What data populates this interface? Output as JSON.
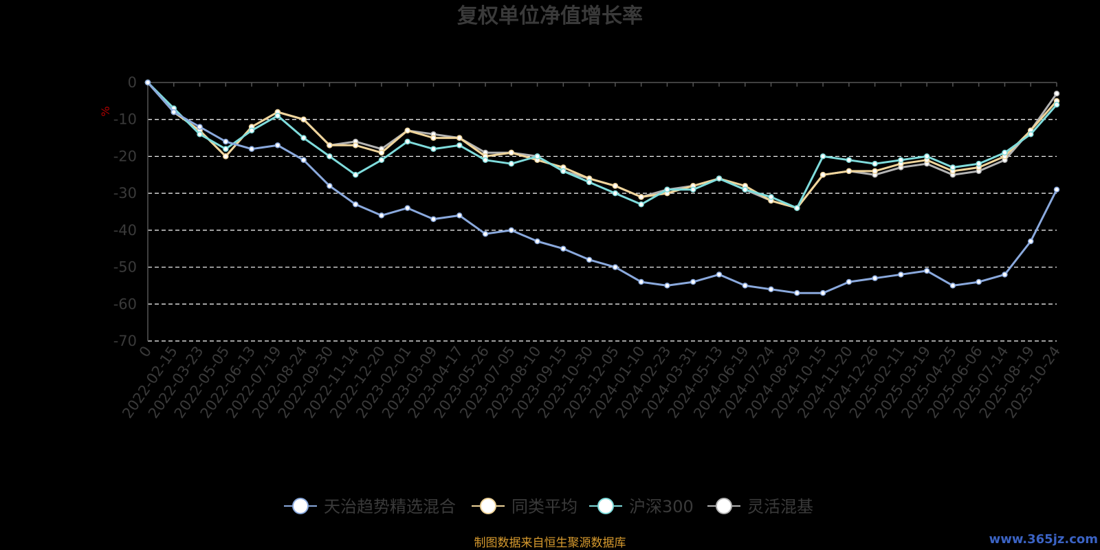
{
  "chart_data": {
    "type": "line",
    "title": "复权单位净值增长率",
    "ylabel": "%",
    "ylim": [
      -70,
      0
    ],
    "yticks": [
      0,
      -10,
      -20,
      -30,
      -40,
      -50,
      -60,
      -70
    ],
    "xticks": [
      "0",
      "2022-02-15",
      "2022-03-23",
      "2022-05-05",
      "2022-06-13",
      "2022-07-19",
      "2022-08-24",
      "2022-09-30",
      "2022-11-14",
      "2022-12-20",
      "2023-02-01",
      "2023-03-09",
      "2023-04-17",
      "2023-05-26",
      "2023-07-05",
      "2023-08-10",
      "2023-09-15",
      "2023-10-30",
      "2023-12-05",
      "2024-01-10",
      "2024-02-23",
      "2024-03-31",
      "2024-05-13",
      "2024-06-19",
      "2024-07-24",
      "2024-08-29",
      "2024-10-15",
      "2024-11-20",
      "2024-12-26",
      "2025-02-11",
      "2025-03-19",
      "2025-04-25",
      "2025-06-06",
      "2025-07-14",
      "2025-08-19",
      "2025-10-24"
    ],
    "grid": true,
    "legend_position": "bottom",
    "series": [
      {
        "name": "天治趋势精选混合",
        "color": "#8aa9dd",
        "values": [
          0,
          -8,
          -12,
          -16,
          -18,
          -17,
          -21,
          -28,
          -33,
          -36,
          -34,
          -37,
          -36,
          -41,
          -40,
          -43,
          -45,
          -48,
          -50,
          -54,
          -55,
          -54,
          -52,
          -55,
          -56,
          -57,
          -57,
          -54,
          -53,
          -52,
          -51,
          -55,
          -54,
          -52,
          -43,
          -29
        ]
      },
      {
        "name": "同类平均",
        "color": "#f0d59b",
        "values": [
          0,
          -8,
          -13,
          -20,
          -12,
          -8,
          -10,
          -17,
          -17,
          -19,
          -13,
          -15,
          -15,
          -20,
          -19,
          -21,
          -23,
          -26,
          -28,
          -31,
          -30,
          -28,
          -26,
          -28,
          -32,
          -34,
          -25,
          -24,
          -24,
          -22,
          -21,
          -24,
          -23,
          -20,
          -13,
          -5
        ]
      },
      {
        "name": "沪深300",
        "color": "#7fdcdc",
        "values": [
          0,
          -7,
          -14,
          -18,
          -13,
          -9,
          -15,
          -20,
          -25,
          -21,
          -16,
          -18,
          -17,
          -21,
          -22,
          -20,
          -24,
          -27,
          -30,
          -33,
          -29,
          -29,
          -26,
          -29,
          -31,
          -34,
          -20,
          -21,
          -22,
          -21,
          -20,
          -23,
          -22,
          -19,
          -14,
          -6
        ]
      },
      {
        "name": "灵活混基",
        "color": "#b3b3b3",
        "values": [
          0,
          -8,
          -13,
          -20,
          -12,
          -8,
          -10,
          -17,
          -16,
          -18,
          -13,
          -14,
          -15,
          -19,
          -19,
          -20,
          -24,
          -26,
          -28,
          -31,
          -29,
          -28,
          -26,
          -29,
          -32,
          -34,
          -25,
          -24,
          -25,
          -23,
          -22,
          -25,
          -24,
          -21,
          -13,
          -3
        ]
      }
    ],
    "source_note": "制图数据来自恒生聚源数据库",
    "watermark": "www.365jz.com"
  }
}
